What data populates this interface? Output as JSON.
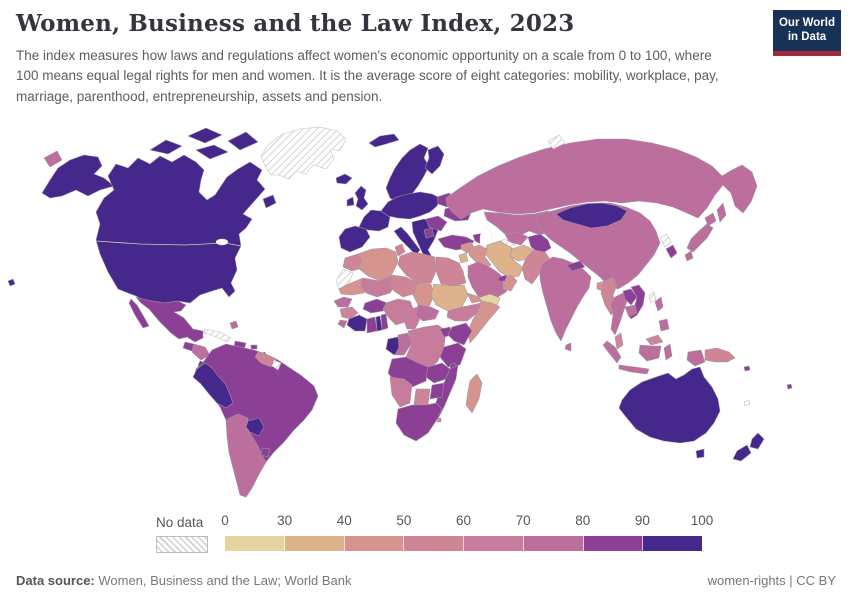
{
  "header": {
    "title": "Women, Business and the Law Index, 2023",
    "subtitle": "The index measures how laws and regulations affect women's economic opportunity on a scale from 0 to 100, where 100 means equal legal rights for men and women. It is the average score of eight categories: mobility, workplace, pay, marriage, parenthood, entrepreneurship, assets and pension."
  },
  "logo": {
    "line1": "Our World",
    "line2": "in Data",
    "bg_color": "#183257",
    "stripe_color": "#a3293c"
  },
  "footer": {
    "source_label": "Data source:",
    "source_text": " Women, Business and the Law; World Bank",
    "rights_text": "women-rights | CC BY"
  },
  "chart_data": {
    "type": "choropleth",
    "title": "Women, Business and the Law Index, 2023",
    "unit": "index score (0-100)",
    "no_data_label": "No data",
    "legend_ticks": [
      "0",
      "30",
      "40",
      "50",
      "60",
      "70",
      "80",
      "90",
      "100"
    ],
    "bins": [
      {
        "key": "b0_30",
        "range": "0-30",
        "color": "#E5D3A0"
      },
      {
        "key": "b30_40",
        "range": "30-40",
        "color": "#DEB28B"
      },
      {
        "key": "b40_50",
        "range": "40-50",
        "color": "#D6948F"
      },
      {
        "key": "b50_60",
        "range": "50-60",
        "color": "#CE8595"
      },
      {
        "key": "b60_70",
        "range": "60-70",
        "color": "#C67C9A"
      },
      {
        "key": "b70_80",
        "range": "70-80",
        "color": "#BC6E9C"
      },
      {
        "key": "b80_90",
        "range": "80-90",
        "color": "#8C4095"
      },
      {
        "key": "b90_100",
        "range": "90-100",
        "color": "#46278B"
      }
    ],
    "regions": {
      "alaska": "b90_100",
      "canada_united_states": "b90_100",
      "canada_arctic_islands": "b90_100",
      "newfoundland": "b90_100",
      "hawaii": "b90_100",
      "greenland": "no_data",
      "russia_chukotka": "b70_80",
      "mexico": "b80_90",
      "guatemala": "b80_90",
      "honduras_nicaragua": "b70_80",
      "costa_rica": "b90_100",
      "panama": "b80_90",
      "cuba": "no_data",
      "jamaica": "b80_90",
      "hispaniola": "b80_90",
      "puerto_rico": "b80_90",
      "bahamas": "b70_80",
      "lesser_antilles": "b80_90",
      "south_america_core": "b80_90",
      "peru": "b90_100",
      "paraguay": "b90_100",
      "argentina_chile": "b70_80",
      "uruguay": "b80_90",
      "guyana_suriname": "b50_60",
      "french_guiana": "no_data",
      "iceland": "b90_100",
      "svalbard": "b90_100",
      "norway_sweden": "b90_100",
      "finland": "b90_100",
      "denmark": "b90_100",
      "united_kingdom": "b90_100",
      "ireland": "b90_100",
      "iberia": "b90_100",
      "france": "b90_100",
      "central_europe": "b90_100",
      "italy": "b90_100",
      "sicily": "b90_100",
      "greece_west_balkans": "b90_100",
      "belarus": "b80_90",
      "ukraine": "b80_90",
      "hungary_romania": "b80_90",
      "serbia_area": "b80_90",
      "turkey": "b80_90",
      "caucasus": "b80_90",
      "russia": "b70_80",
      "sakhalin": "b70_80",
      "novaya_zemlya": "no_data",
      "kazakhstan": "b70_80",
      "turkmenistan": "no_data",
      "uzbekistan": "b70_80",
      "kyrgyzstan_tajikistan": "b80_90",
      "afghanistan": "b30_40",
      "pakistan": "b50_60",
      "iran": "b30_40",
      "iraq": "b40_50",
      "syria": "b40_50",
      "jordan": "b30_40",
      "saudi_arabia": "b70_80",
      "yemen": "b0_30",
      "oman": "b40_50",
      "united_arab_emirates": "b80_90",
      "china": "b70_80",
      "mongolia": "b90_100",
      "north_korea": "no_data",
      "south_korea": "b80_90",
      "japan": "b70_80",
      "taiwan": "no_data",
      "india": "b70_80",
      "nepal": "b80_90",
      "bangladesh": "b40_50",
      "sri_lanka": "b70_80",
      "myanmar": "b50_60",
      "thailand": "b70_80",
      "laos": "b80_90",
      "vietnam": "b80_90",
      "cambodia": "b70_80",
      "malaysia": "b50_60",
      "indonesia": "b70_80",
      "papua_new_guinea": "b50_60",
      "philippines": "b70_80",
      "solomon_islands": "b80_90",
      "fiji": "b80_90",
      "new_caledonia": "no_data",
      "australia": "b90_100",
      "new_zealand": "b90_100",
      "morocco": "b50_60",
      "western_sahara": "no_data",
      "algeria": "b40_50",
      "tunisia": "b50_60",
      "libya": "b50_60",
      "egypt": "b50_60",
      "mauritania": "b40_50",
      "mali": "b60_70",
      "niger": "b50_60",
      "chad": "b40_50",
      "sudan": "b30_40",
      "eritrea_djibouti": "b40_50",
      "ethiopia": "b60_70",
      "somalia": "b40_50",
      "senegal": "b70_80",
      "guinea": "b50_60",
      "sierra_leone": "b70_80",
      "cote_divoire": "b90_100",
      "ghana": "b80_90",
      "togo": "b90_100",
      "benin": "b80_90",
      "burkina_faso": "b80_90",
      "nigeria": "b60_70",
      "cameroon": "b60_70",
      "central_african_republic": "b70_80",
      "gabon": "b90_100",
      "congo": "b70_80",
      "dr_congo": "b60_70",
      "uganda_rwanda": "b80_90",
      "kenya": "b80_90",
      "tanzania": "b80_90",
      "angola": "b80_90",
      "zambia": "b80_90",
      "malawi": "b80_90",
      "mozambique": "b80_90",
      "zimbabwe": "b80_90",
      "botswana": "b50_60",
      "namibia": "b60_70",
      "south_africa": "b80_90",
      "eswatini": "b40_50",
      "madagascar": "b40_50"
    }
  }
}
